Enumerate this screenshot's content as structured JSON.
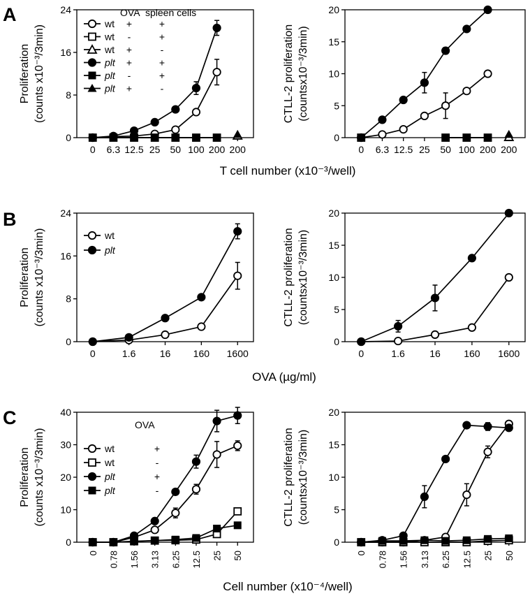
{
  "panel_labels": [
    "A",
    "B",
    "C"
  ],
  "shared_xlabels": {
    "A": "T cell number (x10⁻³/well)",
    "B": "OVA (µg/ml)",
    "C": "Cell number (x10⁻⁴/well)"
  },
  "legends": {
    "A": {
      "headers": [
        "OVA",
        "spleen cells"
      ],
      "entries": [
        {
          "name": "wt",
          "italic": false,
          "marker": "circle-open",
          "cols": [
            "+",
            "+"
          ]
        },
        {
          "name": "wt",
          "italic": false,
          "marker": "square-open",
          "cols": [
            "-",
            "+"
          ]
        },
        {
          "name": "wt",
          "italic": false,
          "marker": "triangle-open",
          "cols": [
            "+",
            "-"
          ]
        },
        {
          "name": "plt",
          "italic": true,
          "marker": "circle-filled",
          "cols": [
            "+",
            "+"
          ]
        },
        {
          "name": "plt",
          "italic": true,
          "marker": "square-filled",
          "cols": [
            "-",
            "+"
          ]
        },
        {
          "name": "plt",
          "italic": true,
          "marker": "triangle-filled",
          "cols": [
            "+",
            "-"
          ]
        }
      ]
    },
    "B": {
      "headers": [],
      "entries": [
        {
          "name": "wt",
          "italic": false,
          "marker": "circle-open",
          "cols": []
        },
        {
          "name": "plt",
          "italic": true,
          "marker": "circle-filled",
          "cols": []
        }
      ]
    },
    "C": {
      "headers": [
        "OVA"
      ],
      "entries": [
        {
          "name": "wt",
          "italic": false,
          "marker": "circle-open",
          "cols": [
            "+"
          ]
        },
        {
          "name": "wt",
          "italic": false,
          "marker": "square-open",
          "cols": [
            "-"
          ]
        },
        {
          "name": "plt",
          "italic": true,
          "marker": "circle-filled",
          "cols": [
            "+"
          ]
        },
        {
          "name": "plt",
          "italic": true,
          "marker": "square-filled",
          "cols": [
            "-"
          ]
        }
      ]
    }
  },
  "chart_data": [
    {
      "id": "A-left",
      "panel": "A",
      "type": "line",
      "ylabel_lines": [
        "Proliferation",
        "(counts x10⁻³/3min)"
      ],
      "ylim": [
        0,
        24
      ],
      "yticks": [
        "0",
        "8",
        "16",
        "24"
      ],
      "categories": [
        "0",
        "6.3",
        "12.5",
        "25",
        "50",
        "100",
        "200",
        "200"
      ],
      "series": [
        {
          "name": "wt OVA+ spleen+",
          "marker": "circle-open",
          "values": [
            0,
            0.2,
            0.3,
            0.7,
            1.5,
            4.8,
            12.3,
            null
          ],
          "errors": [
            0,
            0,
            0,
            0,
            0,
            0.4,
            2.4,
            null
          ]
        },
        {
          "name": "wt OVA- spleen+",
          "marker": "square-open",
          "values": [
            0,
            0,
            0,
            0,
            0,
            0,
            0,
            null
          ],
          "errors": []
        },
        {
          "name": "wt OVA+ spleen-",
          "marker": "triangle-open",
          "values": [
            null,
            null,
            null,
            null,
            null,
            null,
            null,
            0.4
          ],
          "errors": []
        },
        {
          "name": "plt OVA+ spleen+",
          "marker": "circle-filled",
          "values": [
            0,
            0.3,
            1.3,
            2.9,
            5.3,
            9.3,
            20.6,
            null
          ],
          "errors": [
            0,
            0,
            0.3,
            0.3,
            0.5,
            1.2,
            1.4,
            null
          ]
        },
        {
          "name": "plt OVA- spleen+",
          "marker": "square-filled",
          "values": [
            0,
            0,
            0,
            0,
            0,
            0,
            0,
            null
          ],
          "errors": []
        },
        {
          "name": "plt OVA+ spleen-",
          "marker": "triangle-filled",
          "values": [
            null,
            null,
            null,
            null,
            null,
            null,
            null,
            0.6
          ],
          "errors": []
        }
      ]
    },
    {
      "id": "A-right",
      "panel": "A",
      "type": "line",
      "ylabel_lines": [
        "CTLL-2 proliferation",
        "(countsx10⁻³/3min)"
      ],
      "ylim": [
        0,
        20
      ],
      "yticks": [
        "0",
        "5",
        "10",
        "15",
        "20"
      ],
      "categories": [
        "0",
        "6.3",
        "12.5",
        "25",
        "50",
        "100",
        "200",
        "200"
      ],
      "series": [
        {
          "name": "wt OVA+ spleen+",
          "marker": "circle-open",
          "values": [
            0,
            0.5,
            1.3,
            3.4,
            5.0,
            7.3,
            10.0,
            null
          ],
          "errors": [
            0,
            0,
            0.3,
            0.4,
            2.0,
            0.4,
            0.4,
            null
          ]
        },
        {
          "name": "wt OVA- spleen+",
          "marker": "square-open",
          "values": [
            0,
            null,
            null,
            null,
            0,
            0,
            0,
            null
          ],
          "errors": []
        },
        {
          "name": "wt OVA+ spleen-",
          "marker": "triangle-open",
          "values": [
            null,
            null,
            null,
            null,
            null,
            null,
            null,
            0.1
          ],
          "errors": []
        },
        {
          "name": "plt OVA+ spleen+",
          "marker": "circle-filled",
          "values": [
            0,
            2.8,
            5.9,
            8.6,
            13.6,
            17.0,
            20.0,
            null
          ],
          "errors": [
            0,
            0.4,
            0.4,
            1.6,
            0.5,
            0.3,
            0.3,
            null
          ]
        },
        {
          "name": "plt OVA- spleen+",
          "marker": "square-filled",
          "values": [
            0,
            null,
            null,
            null,
            0,
            0,
            0,
            null
          ],
          "errors": []
        },
        {
          "name": "plt OVA+ spleen-",
          "marker": "triangle-filled",
          "values": [
            null,
            null,
            null,
            null,
            null,
            null,
            null,
            0.5
          ],
          "errors": []
        }
      ]
    },
    {
      "id": "B-left",
      "panel": "B",
      "type": "line",
      "ylabel_lines": [
        "Proliferation",
        "(counts x10⁻³/3min)"
      ],
      "ylim": [
        0,
        24
      ],
      "yticks": [
        "0",
        "8",
        "16",
        "24"
      ],
      "categories": [
        "0",
        "1.6",
        "16",
        "160",
        "1600"
      ],
      "series": [
        {
          "name": "wt",
          "marker": "circle-open",
          "values": [
            0,
            0.3,
            1.3,
            2.8,
            12.3
          ],
          "errors": [
            0,
            0,
            0,
            0,
            2.5
          ]
        },
        {
          "name": "plt",
          "marker": "circle-filled",
          "values": [
            0,
            0.8,
            4.4,
            8.3,
            20.6
          ],
          "errors": [
            0,
            0,
            0.3,
            0.5,
            1.4
          ]
        }
      ]
    },
    {
      "id": "B-right",
      "panel": "B",
      "type": "line",
      "ylabel_lines": [
        "CTLL-2 proliferation",
        "(countsx10⁻³/3min)"
      ],
      "ylim": [
        0,
        20
      ],
      "yticks": [
        "0",
        "5",
        "10",
        "15",
        "20"
      ],
      "categories": [
        "0",
        "1.6",
        "16",
        "160",
        "1600"
      ],
      "series": [
        {
          "name": "wt",
          "marker": "circle-open",
          "values": [
            0,
            0.1,
            1.1,
            2.2,
            10.0
          ],
          "errors": [
            0,
            0,
            0,
            0.3,
            0
          ]
        },
        {
          "name": "plt",
          "marker": "circle-filled",
          "values": [
            0,
            2.4,
            6.8,
            13.0,
            20.0
          ],
          "errors": [
            0,
            0.9,
            2.0,
            0.3,
            0
          ]
        }
      ]
    },
    {
      "id": "C-left",
      "panel": "C",
      "type": "line",
      "rotate_xticks": true,
      "ylabel_lines": [
        "Proliferation",
        "(counts x10⁻³/3min)"
      ],
      "ylim": [
        0,
        40
      ],
      "yticks": [
        "0",
        "10",
        "20",
        "30",
        "40"
      ],
      "categories": [
        "0",
        "0.78",
        "1.56",
        "3.13",
        "6.25",
        "12.5",
        "25",
        "50"
      ],
      "series": [
        {
          "name": "wt OVA+",
          "marker": "circle-open",
          "values": [
            0,
            0,
            1.5,
            3.8,
            9.0,
            16.3,
            27.0,
            29.7
          ],
          "errors": [
            0,
            0,
            0,
            0.5,
            1.5,
            1.5,
            4.0,
            1.5
          ]
        },
        {
          "name": "wt OVA-",
          "marker": "square-open",
          "values": [
            0,
            0,
            0.3,
            0.5,
            0.6,
            0.8,
            2.5,
            9.5
          ],
          "errors": []
        },
        {
          "name": "plt OVA+",
          "marker": "circle-filled",
          "values": [
            0,
            0,
            2.0,
            6.5,
            15.5,
            24.8,
            37.3,
            39.0
          ],
          "errors": [
            0,
            0,
            0,
            0.5,
            0.5,
            2.0,
            3.3,
            2.5
          ]
        },
        {
          "name": "plt OVA-",
          "marker": "square-filled",
          "values": [
            0,
            0,
            0.2,
            0.5,
            0.8,
            1.3,
            4.2,
            5.2
          ],
          "errors": []
        }
      ]
    },
    {
      "id": "C-right",
      "panel": "C",
      "type": "line",
      "rotate_xticks": true,
      "ylabel_lines": [
        "CTLL-2 proliferation",
        "(countsx10⁻³/3min)"
      ],
      "ylim": [
        0,
        20
      ],
      "yticks": [
        "0",
        "5",
        "10",
        "15",
        "20"
      ],
      "categories": [
        "0",
        "0.78",
        "1.56",
        "3.13",
        "6.25",
        "12.5",
        "25",
        "50"
      ],
      "series": [
        {
          "name": "wt OVA+",
          "marker": "circle-open",
          "values": [
            0,
            0,
            0,
            0.3,
            0.8,
            7.3,
            13.9,
            18.2
          ],
          "errors": [
            0,
            0,
            0,
            0,
            0,
            1.7,
            0.9,
            0
          ]
        },
        {
          "name": "wt OVA-",
          "marker": "square-open",
          "values": [
            0,
            0,
            0,
            0,
            0,
            0,
            0.2,
            0.3
          ],
          "errors": []
        },
        {
          "name": "plt OVA+",
          "marker": "circle-filled",
          "values": [
            0,
            0.3,
            1.0,
            7.0,
            12.8,
            18.0,
            17.8,
            17.6
          ],
          "errors": [
            0,
            0,
            0,
            1.7,
            0,
            0.4,
            0.6,
            0.3
          ]
        },
        {
          "name": "plt OVA-",
          "marker": "square-filled",
          "values": [
            0,
            0.2,
            0.2,
            0.3,
            0.2,
            0.3,
            0.5,
            0.6
          ],
          "errors": []
        }
      ]
    }
  ]
}
